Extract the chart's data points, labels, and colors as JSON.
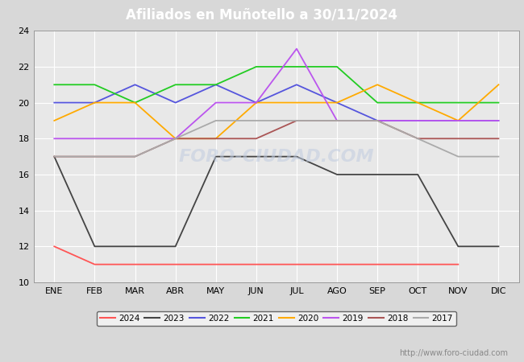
{
  "title": "Afiliados en Muñotello a 30/11/2024",
  "title_color": "#ffffff",
  "title_bg_color": "#4a90d9",
  "ylim": [
    10,
    24
  ],
  "yticks": [
    10,
    12,
    14,
    16,
    18,
    20,
    22,
    24
  ],
  "months": [
    "ENE",
    "FEB",
    "MAR",
    "ABR",
    "MAY",
    "JUN",
    "JUL",
    "AGO",
    "SEP",
    "OCT",
    "NOV",
    "DIC"
  ],
  "watermark": "http://www.foro-ciudad.com",
  "series": {
    "2024": {
      "color": "#ff5555",
      "data": [
        12,
        11,
        11,
        11,
        11,
        11,
        11,
        11,
        11,
        11,
        11,
        null
      ]
    },
    "2023": {
      "color": "#444444",
      "data": [
        17,
        12,
        12,
        12,
        17,
        17,
        17,
        16,
        16,
        16,
        12,
        12
      ]
    },
    "2022": {
      "color": "#5555dd",
      "data": [
        20,
        20,
        21,
        20,
        21,
        20,
        21,
        20,
        19,
        19,
        19,
        19
      ]
    },
    "2021": {
      "color": "#22cc22",
      "data": [
        21,
        21,
        20,
        21,
        21,
        22,
        22,
        22,
        20,
        20,
        20,
        20
      ]
    },
    "2020": {
      "color": "#ffaa00",
      "data": [
        19,
        20,
        20,
        18,
        18,
        20,
        20,
        20,
        21,
        20,
        19,
        21
      ]
    },
    "2019": {
      "color": "#bb55ee",
      "data": [
        18,
        18,
        18,
        18,
        20,
        20,
        23,
        19,
        19,
        19,
        19,
        19
      ]
    },
    "2018": {
      "color": "#aa5555",
      "data": [
        17,
        17,
        17,
        18,
        18,
        18,
        19,
        19,
        19,
        18,
        18,
        18
      ]
    },
    "2017": {
      "color": "#aaaaaa",
      "data": [
        17,
        17,
        17,
        18,
        19,
        19,
        19,
        19,
        19,
        18,
        17,
        17
      ]
    }
  },
  "bg_color": "#d8d8d8",
  "plot_bg_color": "#e8e8e8",
  "grid_color": "#ffffff"
}
